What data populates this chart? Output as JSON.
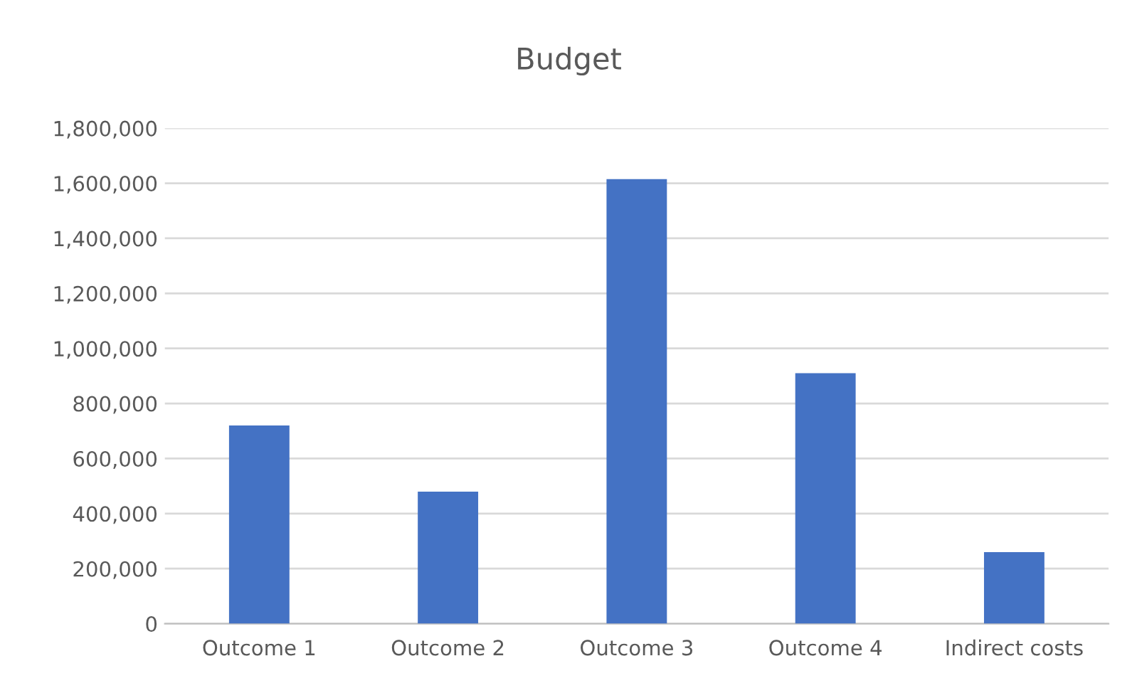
{
  "chart_data": {
    "type": "bar",
    "title": "Budget",
    "categories": [
      "Outcome 1",
      "Outcome 2",
      "Outcome 3",
      "Outcome 4",
      "Indirect costs"
    ],
    "values": [
      720000,
      480000,
      1615000,
      910000,
      260000
    ],
    "color": "#4472c4",
    "ylim": [
      0,
      1800000
    ],
    "yticks": [
      {
        "value": 0,
        "label": "0"
      },
      {
        "value": 200000,
        "label": "200,000"
      },
      {
        "value": 400000,
        "label": "400,000"
      },
      {
        "value": 600000,
        "label": "600,000"
      },
      {
        "value": 800000,
        "label": "800,000"
      },
      {
        "value": 1000000,
        "label": "1,000,000"
      },
      {
        "value": 1200000,
        "label": "1,200,000"
      },
      {
        "value": 1400000,
        "label": "1,400,000"
      },
      {
        "value": 1600000,
        "label": "1,600,000"
      },
      {
        "value": 1800000,
        "label": "1,800,000"
      }
    ],
    "grid": "y",
    "legend": false
  }
}
